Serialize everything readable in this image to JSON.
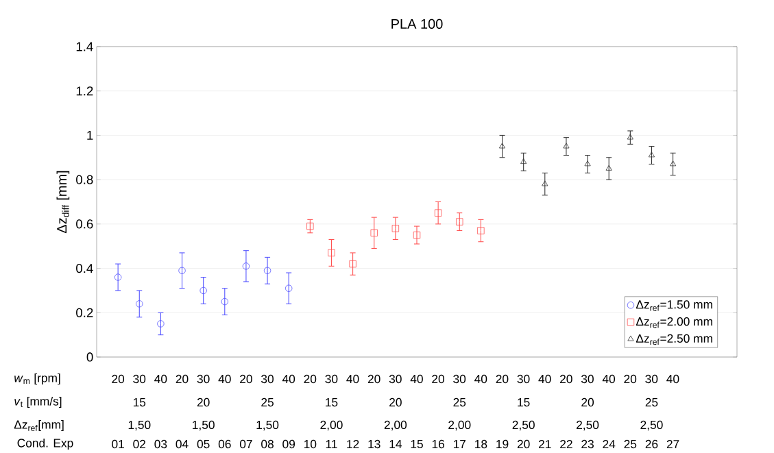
{
  "chart_data": {
    "type": "scatter",
    "title": "PLA 100",
    "ylabel": "Δz$_{diff}$ [mm]",
    "xlabel": "Cond. Exp",
    "xlim": [
      0,
      30
    ],
    "xticks": [
      {
        "value": 1,
        "label": "01"
      },
      {
        "value": 2,
        "label": "02"
      },
      {
        "value": 3,
        "label": "03"
      },
      {
        "value": 4,
        "label": "04"
      },
      {
        "value": 5,
        "label": "05"
      },
      {
        "value": 6,
        "label": "06"
      },
      {
        "value": 7,
        "label": "07"
      },
      {
        "value": 8,
        "label": "08"
      },
      {
        "value": 9,
        "label": "09"
      },
      {
        "value": 10,
        "label": "10"
      },
      {
        "value": 11,
        "label": "11"
      },
      {
        "value": 12,
        "label": "12"
      },
      {
        "value": 13,
        "label": "13"
      },
      {
        "value": 14,
        "label": "14"
      },
      {
        "value": 15,
        "label": "15"
      },
      {
        "value": 16,
        "label": "16"
      },
      {
        "value": 17,
        "label": "17"
      },
      {
        "value": 18,
        "label": "18"
      },
      {
        "value": 19,
        "label": "19"
      },
      {
        "value": 20,
        "label": "20"
      },
      {
        "value": 21,
        "label": "21"
      },
      {
        "value": 22,
        "label": "22"
      },
      {
        "value": 23,
        "label": "23"
      },
      {
        "value": 24,
        "label": "24"
      },
      {
        "value": 25,
        "label": "25"
      },
      {
        "value": 26,
        "label": "26"
      },
      {
        "value": 27,
        "label": "27"
      }
    ],
    "ylim": [
      0,
      1.4
    ],
    "yticks": [
      0,
      0.2,
      0.4,
      0.6,
      0.8,
      1,
      1.2,
      1.4
    ],
    "grid": "y",
    "legend": "bottom right",
    "series": [
      {
        "name": "Δz$_{ref}$=1.50 mm",
        "color": "#5050ff",
        "marker": "circle",
        "x": [
          1,
          2,
          3,
          4,
          5,
          6,
          7,
          8,
          9
        ],
        "values": [
          0.36,
          0.24,
          0.15,
          0.39,
          0.3,
          0.25,
          0.41,
          0.39,
          0.31
        ],
        "errors": [
          0.06,
          0.06,
          0.05,
          0.08,
          0.06,
          0.06,
          0.07,
          0.06,
          0.07
        ]
      },
      {
        "name": "Δz$_{ref}$=2.00 mm",
        "color": "#ff5050",
        "marker": "square",
        "x": [
          10,
          11,
          12,
          13,
          14,
          15,
          16,
          17,
          18
        ],
        "values": [
          0.59,
          0.47,
          0.42,
          0.56,
          0.58,
          0.55,
          0.65,
          0.61,
          0.57
        ],
        "errors": [
          0.03,
          0.06,
          0.05,
          0.07,
          0.05,
          0.04,
          0.05,
          0.04,
          0.05
        ]
      },
      {
        "name": "Δz$_{ref}$=2.50 mm",
        "color": "#333333",
        "marker": "triangle",
        "x": [
          19,
          20,
          21,
          22,
          23,
          24,
          25,
          26,
          27
        ],
        "values": [
          0.95,
          0.88,
          0.78,
          0.95,
          0.87,
          0.85,
          0.99,
          0.91,
          0.87
        ],
        "errors": [
          0.05,
          0.04,
          0.05,
          0.04,
          0.04,
          0.05,
          0.03,
          0.04,
          0.05
        ]
      }
    ],
    "annotations": [
      "*w*$_{m}$  [rpm]",
      "20 30 40 20 30 40 20 30 40 20 30 40 20 30 40 20 30 40 20 30 40 20 30 40 20 30 40",
      "*v*$_{t}$  [mm/s]",
      "15 20 25 15 20 25 15 20 25",
      "Δz$_{ref}$[mm]",
      "1,50 1,50 1,50 2,00 2,00 2,00 2,50 2,50 2,50"
    ]
  }
}
